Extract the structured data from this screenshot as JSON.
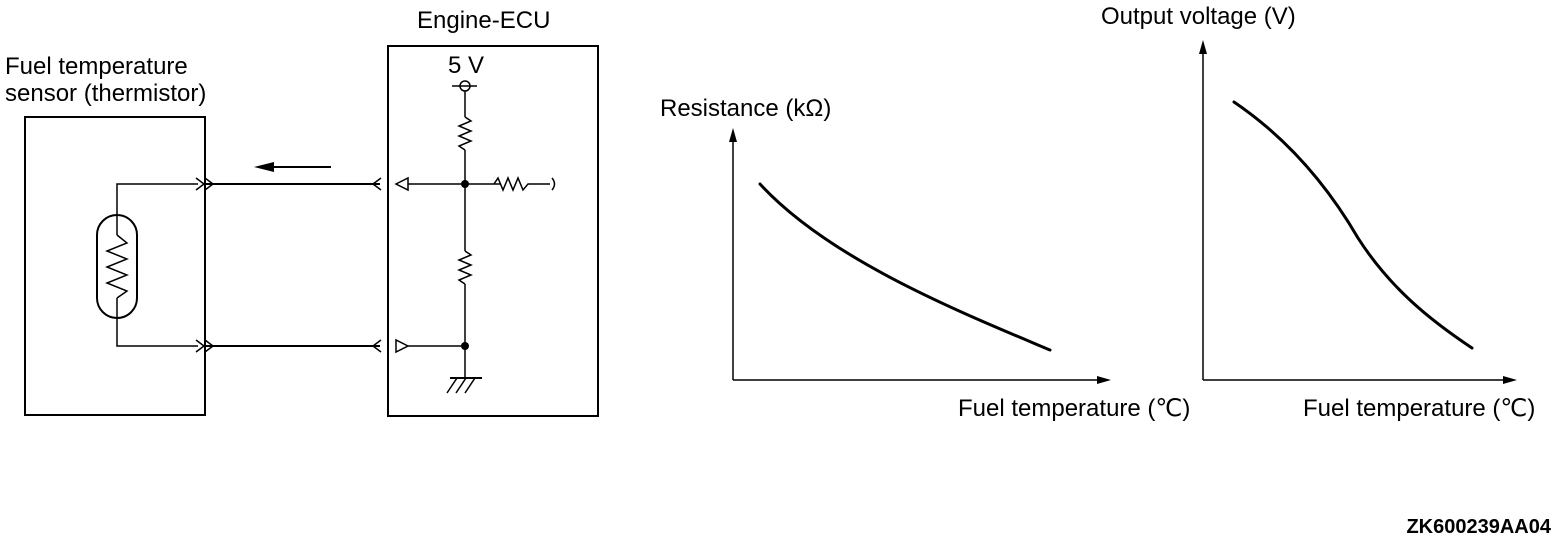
{
  "circuit": {
    "sensor_label_line1": "Fuel temperature",
    "sensor_label_line2": "sensor (thermistor)",
    "ecu_label": "Engine-ECU",
    "supply_label": "5 V"
  },
  "chart_data": [
    {
      "type": "line",
      "xlabel": "Fuel temperature (℃)",
      "ylabel": "Resistance (kΩ)",
      "trend": "decreasing",
      "grid": false
    },
    {
      "type": "line",
      "xlabel": "Fuel temperature (℃)",
      "ylabel": "Output voltage (V)",
      "trend": "decreasing",
      "grid": false
    }
  ],
  "figure_code": "ZK600239AA04"
}
